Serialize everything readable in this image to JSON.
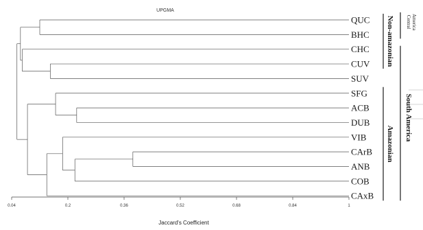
{
  "chart_data": {
    "type": "dendrogram",
    "title": "UPGMA",
    "xlabel": "Jaccard's Coefficient",
    "xlim": [
      0.04,
      1.0
    ],
    "ticks": [
      "0.04",
      "0.2",
      "0.36",
      "0.52",
      "0.68",
      "0.84",
      "1"
    ],
    "leaves": [
      "QUC",
      "BHC",
      "CHC",
      "CUV",
      "SUV",
      "SFG",
      "ACB",
      "DUB",
      "VIB",
      "CArB",
      "ANB",
      "COB",
      "CAxB"
    ],
    "merges": [
      {
        "left": "QUC",
        "right": "BHC",
        "height": 0.12
      },
      {
        "left": "CUV",
        "right": "SUV",
        "height": 0.15
      },
      {
        "left": "CHC",
        "right": "CUV+SUV",
        "height": 0.07
      },
      {
        "left": "QUC+BHC",
        "right": "CHC+CUV+SUV",
        "height": 0.065
      },
      {
        "left": "ACB",
        "right": "DUB",
        "height": 0.225
      },
      {
        "left": "SFG",
        "right": "ACB+DUB",
        "height": 0.165
      },
      {
        "left": "CArB",
        "right": "ANB",
        "height": 0.385
      },
      {
        "left": "CArB+ANB",
        "right": "COB",
        "height": 0.22
      },
      {
        "left": "VIB",
        "right": "CArB+ANB+COB",
        "height": 0.185
      },
      {
        "left": "VIB+CArB+ANB+COB",
        "right": "CAxB",
        "height": 0.14
      },
      {
        "left": "SFG+ACB+DUB",
        "right": "VIB+CArB+ANB+COB+CAxB",
        "height": 0.085
      },
      {
        "left": "QUC+BHC+CHC+CUV+SUV",
        "right": "SFG+ACB+DUB+VIB+CArB+ANB+COB+CAxB",
        "height": 0.055
      }
    ],
    "groups": [
      {
        "label": "Non-amazonian",
        "leaves": [
          "QUC",
          "BHC",
          "CHC",
          "CUV"
        ]
      },
      {
        "label": "Amazonian",
        "leaves": [
          "SFG",
          "ACB",
          "DUB",
          "VIB",
          "CArB",
          "ANB",
          "COB",
          "CAxB"
        ]
      },
      {
        "label": "Central America",
        "lines": [
          "Central",
          "America"
        ],
        "leaves": [
          "QUC",
          "BHC"
        ]
      },
      {
        "label": "South America",
        "leaves": [
          "CHC",
          "CUV",
          "SUV",
          "SFG",
          "ACB",
          "DUB",
          "VIB",
          "CArB",
          "ANB",
          "COB",
          "CAxB"
        ]
      }
    ],
    "colors": {
      "lines": "#555555",
      "text": "#1a1a1a"
    }
  }
}
